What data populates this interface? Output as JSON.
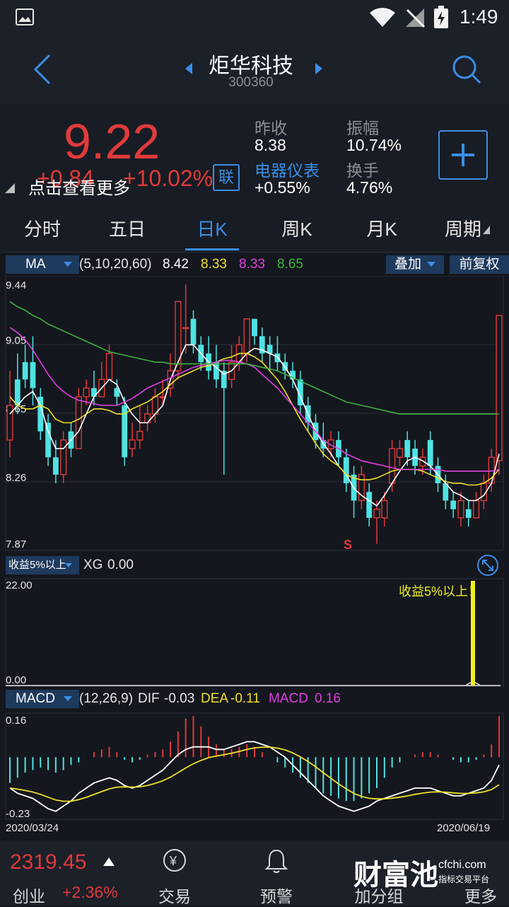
{
  "status": {
    "time": "1:49"
  },
  "header": {
    "title": "炬华科技",
    "code": "300360"
  },
  "quote": {
    "price": "9.22",
    "change": "+0.84",
    "change_pct": "+10.02%",
    "tip": "点击查看更多",
    "link_badge": "联",
    "prev_close_label": "昨收",
    "prev_close": "8.38",
    "amplitude_label": "振幅",
    "amplitude": "10.74%",
    "sector_label": "电器仪表",
    "sector_change": "+0.55%",
    "turnover_label": "换手",
    "turnover": "4.76%"
  },
  "tabs": [
    "分时",
    "五日",
    "日K",
    "周K",
    "月K",
    "周期"
  ],
  "active_tab": 2,
  "ma": {
    "label": "MA",
    "params": "(5,10,20,60)",
    "v5": "8.42",
    "v10": "8.33",
    "v20": "8.33",
    "v60": "8.65",
    "overlay": "叠加",
    "adjust": "前复权",
    "colors": {
      "ma5": "#ffffff",
      "ma10": "#f0e028",
      "ma20": "#e040e0",
      "ma60": "#40b040"
    }
  },
  "kline_axis": [
    "9.44",
    "9.05",
    "8.65",
    "8.26",
    "7.87"
  ],
  "kline_marker": "S",
  "xg": {
    "selector": "收益5%以上",
    "label": "XG",
    "value": "0.00",
    "axis_top": "22.00",
    "axis_bottom": "0.00",
    "signal": "收益5%以上！",
    "signal_value": 22
  },
  "macd": {
    "label": "MACD",
    "params": "(12,26,9)",
    "dif_label": "DIF",
    "dif": "-0.03",
    "dea_label": "DEA",
    "dea": "-0.11",
    "macd_label": "MACD",
    "macd": "0.16",
    "axis_top": "0.16",
    "axis_bottom": "-0.23"
  },
  "dates": {
    "start": "2020/03/24",
    "end": "2020/06/19"
  },
  "bottom": {
    "index_value": "2319.45",
    "index_name": "创业",
    "index_change": "+2.36%",
    "tabs": [
      "交易",
      "预警",
      "加分组",
      "更多"
    ],
    "watermark": "财富池",
    "watermark_site": "cfchi.com",
    "watermark_sub": "指标交易平台"
  },
  "colors": {
    "up": "#e03a3a",
    "down": "#4fe3e3",
    "accent": "#3a8ee6"
  },
  "chart_data": {
    "type": "candlestick",
    "y_range": [
      7.87,
      9.44
    ],
    "candles": [
      [
        8.5,
        8.7,
        8.4,
        8.9
      ],
      [
        8.85,
        8.7,
        8.65,
        9.0
      ],
      [
        8.95,
        8.85,
        8.8,
        9.05
      ],
      [
        8.95,
        8.8,
        8.7,
        9.1
      ],
      [
        8.75,
        8.55,
        8.5,
        8.8
      ],
      [
        8.6,
        8.4,
        8.35,
        8.65
      ],
      [
        8.4,
        8.3,
        8.25,
        8.5
      ],
      [
        8.3,
        8.5,
        8.25,
        8.55
      ],
      [
        8.55,
        8.45,
        8.4,
        8.6
      ],
      [
        8.45,
        8.75,
        8.45,
        8.8
      ],
      [
        8.75,
        8.8,
        8.7,
        8.85
      ],
      [
        8.8,
        8.75,
        8.7,
        8.9
      ],
      [
        8.75,
        8.85,
        8.75,
        8.95
      ],
      [
        8.85,
        9.0,
        8.85,
        9.05
      ],
      [
        8.8,
        8.75,
        8.7,
        8.85
      ],
      [
        8.7,
        8.4,
        8.35,
        8.75
      ],
      [
        8.45,
        8.5,
        8.4,
        8.6
      ],
      [
        8.5,
        8.55,
        8.45,
        8.7
      ],
      [
        8.6,
        8.65,
        8.55,
        8.7
      ],
      [
        8.65,
        8.75,
        8.6,
        8.8
      ],
      [
        8.75,
        8.75,
        8.7,
        8.85
      ],
      [
        8.8,
        8.9,
        8.75,
        9.0
      ],
      [
        8.9,
        9.3,
        8.85,
        9.3
      ],
      [
        9.15,
        9.15,
        9.0,
        9.4
      ],
      [
        9.2,
        9.05,
        9.0,
        9.25
      ],
      [
        9.05,
        8.95,
        8.9,
        9.1
      ],
      [
        9.0,
        8.9,
        8.85,
        9.1
      ],
      [
        8.95,
        8.85,
        8.8,
        9.05
      ],
      [
        8.9,
        8.8,
        8.3,
        8.95
      ],
      [
        8.85,
        8.95,
        8.8,
        9.05
      ],
      [
        8.95,
        9.05,
        8.9,
        9.1
      ],
      [
        9.0,
        9.2,
        8.95,
        9.2
      ],
      [
        9.2,
        9.1,
        9.05,
        9.2
      ],
      [
        9.1,
        9.0,
        8.95,
        9.15
      ],
      [
        9.05,
        9.0,
        8.9,
        9.1
      ],
      [
        9.0,
        8.95,
        8.9,
        9.1
      ],
      [
        8.95,
        8.9,
        8.85,
        9.0
      ],
      [
        8.9,
        8.85,
        8.8,
        8.95
      ],
      [
        8.85,
        8.7,
        8.65,
        8.9
      ],
      [
        8.7,
        8.6,
        8.55,
        8.75
      ],
      [
        8.6,
        8.5,
        8.45,
        8.65
      ],
      [
        8.5,
        8.45,
        8.4,
        8.6
      ],
      [
        8.45,
        8.5,
        8.4,
        8.55
      ],
      [
        8.5,
        8.4,
        8.35,
        8.55
      ],
      [
        8.4,
        8.25,
        8.2,
        8.45
      ],
      [
        8.3,
        8.15,
        8.05,
        8.35
      ],
      [
        8.15,
        8.3,
        8.1,
        8.35
      ],
      [
        8.2,
        8.05,
        8.0,
        8.25
      ],
      [
        8.05,
        8.1,
        7.9,
        8.15
      ],
      [
        8.05,
        8.15,
        8.0,
        8.2
      ],
      [
        8.25,
        8.45,
        8.2,
        8.5
      ],
      [
        8.4,
        8.45,
        8.35,
        8.5
      ],
      [
        8.5,
        8.4,
        8.35,
        8.55
      ],
      [
        8.45,
        8.35,
        8.3,
        8.5
      ],
      [
        8.35,
        8.4,
        8.3,
        8.45
      ],
      [
        8.5,
        8.35,
        8.3,
        8.55
      ],
      [
        8.35,
        8.25,
        8.2,
        8.4
      ],
      [
        8.25,
        8.15,
        8.1,
        8.3
      ],
      [
        8.15,
        8.1,
        8.05,
        8.2
      ],
      [
        8.05,
        8.15,
        8.0,
        8.2
      ],
      [
        8.1,
        8.05,
        8.0,
        8.15
      ],
      [
        8.05,
        8.15,
        8.05,
        8.2
      ],
      [
        8.15,
        8.25,
        8.1,
        8.3
      ],
      [
        8.25,
        8.4,
        8.2,
        8.45
      ],
      [
        8.38,
        9.22,
        8.3,
        9.22
      ]
    ],
    "series": [
      {
        "name": "MA5",
        "values": [
          8.65,
          8.7,
          8.75,
          8.78,
          8.7,
          8.55,
          8.45,
          8.45,
          8.5,
          8.55,
          8.65,
          8.75,
          8.8,
          8.85,
          8.82,
          8.72,
          8.65,
          8.6,
          8.6,
          8.65,
          8.7,
          8.85,
          8.95,
          9.05,
          9.05,
          9.0,
          8.95,
          8.92,
          8.88,
          8.9,
          8.95,
          9.0,
          9.03,
          9.02,
          9.0,
          8.98,
          8.92,
          8.85,
          8.75,
          8.65,
          8.55,
          8.48,
          8.42,
          8.35,
          8.3,
          8.22,
          8.18,
          8.15,
          8.12,
          8.18,
          8.25,
          8.32,
          8.38,
          8.4,
          8.38,
          8.35,
          8.3,
          8.25,
          8.2,
          8.18,
          8.15,
          8.15,
          8.18,
          8.25,
          8.42
        ]
      },
      {
        "name": "MA10",
        "values": [
          8.75,
          8.7,
          8.68,
          8.68,
          8.7,
          8.68,
          8.62,
          8.6,
          8.6,
          8.62,
          8.65,
          8.68,
          8.68,
          8.67,
          8.65,
          8.65,
          8.68,
          8.7,
          8.72,
          8.75,
          8.78,
          8.82,
          8.86,
          8.88,
          8.9,
          8.92,
          8.93,
          8.95,
          8.97,
          8.98,
          9.0,
          9.0,
          8.98,
          8.95,
          8.9,
          8.85,
          8.78,
          8.7,
          8.62,
          8.55,
          8.48,
          8.42,
          8.38,
          8.35,
          8.3,
          8.28,
          8.27,
          8.27,
          8.28,
          8.3,
          8.32,
          8.33,
          8.33,
          8.33,
          8.32,
          8.3,
          8.28,
          8.26,
          8.25,
          8.25,
          8.24,
          8.24,
          8.25,
          8.28,
          8.33
        ]
      },
      {
        "name": "MA20",
        "values": [
          9.15,
          9.12,
          9.08,
          9.02,
          8.95,
          8.88,
          8.82,
          8.78,
          8.75,
          8.73,
          8.72,
          8.71,
          8.7,
          8.7,
          8.7,
          8.72,
          8.74,
          8.77,
          8.8,
          8.82,
          8.84,
          8.86,
          8.88,
          8.9,
          8.92,
          8.93,
          8.94,
          8.95,
          8.96,
          8.96,
          8.95,
          8.94,
          8.92,
          8.88,
          8.84,
          8.8,
          8.75,
          8.7,
          8.65,
          8.6,
          8.55,
          8.5,
          8.47,
          8.45,
          8.42,
          8.4,
          8.38,
          8.37,
          8.36,
          8.35,
          8.34,
          8.33,
          8.33,
          8.33,
          8.33,
          8.33,
          8.33,
          8.32,
          8.32,
          8.32,
          8.32,
          8.32,
          8.32,
          8.32,
          8.33
        ]
      },
      {
        "name": "MA60",
        "values": [
          9.3,
          9.27,
          9.25,
          9.22,
          9.2,
          9.17,
          9.15,
          9.13,
          9.11,
          9.09,
          9.07,
          9.05,
          9.03,
          9.01,
          9.0,
          8.99,
          8.98,
          8.97,
          8.96,
          8.95,
          8.95,
          8.94,
          8.94,
          8.94,
          8.94,
          8.94,
          8.94,
          8.94,
          8.94,
          8.94,
          8.94,
          8.94,
          8.93,
          8.92,
          8.91,
          8.9,
          8.88,
          8.86,
          8.84,
          8.82,
          8.8,
          8.78,
          8.76,
          8.74,
          8.72,
          8.71,
          8.7,
          8.69,
          8.68,
          8.67,
          8.66,
          8.65,
          8.65,
          8.65,
          8.65,
          8.65,
          8.65,
          8.65,
          8.65,
          8.65,
          8.65,
          8.65,
          8.65,
          8.65,
          8.65
        ]
      }
    ],
    "macd": {
      "y_range": [
        -0.23,
        0.16
      ],
      "hist": [
        -0.1,
        -0.08,
        -0.06,
        -0.05,
        -0.04,
        -0.05,
        -0.06,
        -0.05,
        -0.03,
        -0.02,
        0.0,
        0.02,
        0.03,
        0.04,
        0.02,
        -0.01,
        -0.02,
        -0.01,
        0.01,
        0.02,
        0.03,
        0.06,
        0.1,
        0.15,
        0.16,
        0.12,
        0.08,
        0.05,
        0.03,
        0.03,
        0.04,
        0.05,
        0.04,
        0.02,
        0.0,
        -0.02,
        -0.04,
        -0.06,
        -0.08,
        -0.1,
        -0.12,
        -0.14,
        -0.15,
        -0.16,
        -0.17,
        -0.17,
        -0.16,
        -0.14,
        -0.12,
        -0.08,
        -0.04,
        -0.02,
        0.0,
        0.01,
        0.02,
        0.02,
        0.01,
        0.0,
        -0.01,
        -0.02,
        -0.02,
        -0.01,
        0.01,
        0.05,
        0.16
      ],
      "dif": [
        -0.12,
        -0.14,
        -0.15,
        -0.16,
        -0.18,
        -0.2,
        -0.21,
        -0.19,
        -0.17,
        -0.14,
        -0.12,
        -0.1,
        -0.09,
        -0.08,
        -0.09,
        -0.11,
        -0.12,
        -0.11,
        -0.09,
        -0.07,
        -0.05,
        -0.02,
        0.01,
        0.03,
        0.04,
        0.04,
        0.04,
        0.03,
        0.03,
        0.04,
        0.05,
        0.06,
        0.06,
        0.05,
        0.04,
        0.02,
        0.0,
        -0.03,
        -0.06,
        -0.09,
        -0.12,
        -0.15,
        -0.17,
        -0.19,
        -0.2,
        -0.21,
        -0.2,
        -0.19,
        -0.17,
        -0.16,
        -0.15,
        -0.14,
        -0.13,
        -0.12,
        -0.12,
        -0.12,
        -0.13,
        -0.14,
        -0.15,
        -0.15,
        -0.14,
        -0.13,
        -0.12,
        -0.09,
        -0.03
      ]
    }
  }
}
